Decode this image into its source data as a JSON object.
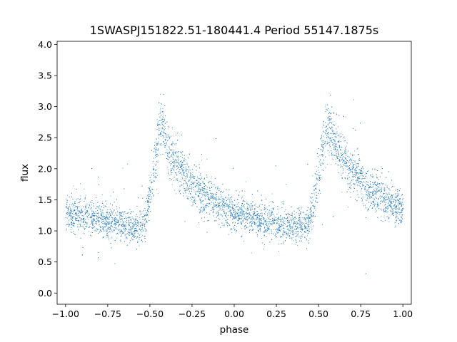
{
  "chart_data": {
    "type": "scatter",
    "title": "1SWASPJ151822.51-180441.4 Period 55147.1875s",
    "xlabel": "phase",
    "ylabel": "flux",
    "xlim": [
      -1.05,
      1.05
    ],
    "ylim": [
      -0.18,
      4.05
    ],
    "xticks": [
      -1.0,
      -0.75,
      -0.5,
      -0.25,
      0.0,
      0.25,
      0.5,
      0.75,
      1.0
    ],
    "xtick_labels": [
      "−1.00",
      "−0.75",
      "−0.50",
      "−0.25",
      "0.00",
      "0.25",
      "0.50",
      "0.75",
      "1.00"
    ],
    "yticks": [
      0.0,
      0.5,
      1.0,
      1.5,
      2.0,
      2.5,
      3.0,
      3.5,
      4.0
    ],
    "ytick_labels": [
      "0.0",
      "0.5",
      "1.0",
      "1.5",
      "2.0",
      "2.5",
      "3.0",
      "3.5",
      "4.0"
    ],
    "grid": false,
    "legend": "none",
    "color": "#1f77b4",
    "series": [
      {
        "x": [
          -1.0,
          -0.95,
          -0.9,
          -0.85,
          -0.8,
          -0.75,
          -0.7,
          -0.65,
          -0.6,
          -0.57,
          -0.54,
          -0.52,
          -0.5,
          -0.48,
          -0.46,
          -0.44,
          -0.42,
          -0.4,
          -0.38,
          -0.35,
          -0.3,
          -0.25,
          -0.2,
          -0.15,
          -0.1,
          -0.05,
          0.0,
          0.05,
          0.1,
          0.15,
          0.2,
          0.25,
          0.3,
          0.35,
          0.4,
          0.43,
          0.46,
          0.48,
          0.5,
          0.52,
          0.54,
          0.56,
          0.58,
          0.6,
          0.62,
          0.65,
          0.7,
          0.75,
          0.8,
          0.85,
          0.9,
          0.95,
          1.0
        ],
        "y": [
          1.3,
          1.27,
          1.24,
          1.22,
          1.19,
          1.17,
          1.14,
          1.11,
          1.08,
          1.07,
          1.12,
          1.3,
          1.6,
          1.95,
          2.35,
          2.7,
          2.6,
          2.38,
          2.25,
          2.1,
          1.92,
          1.75,
          1.62,
          1.52,
          1.44,
          1.37,
          1.31,
          1.26,
          1.22,
          1.18,
          1.15,
          1.12,
          1.1,
          1.08,
          1.07,
          1.1,
          1.3,
          1.6,
          1.95,
          2.35,
          2.62,
          2.7,
          2.55,
          2.4,
          2.3,
          2.15,
          1.97,
          1.82,
          1.68,
          1.57,
          1.48,
          1.4,
          1.34
        ]
      }
    ]
  }
}
